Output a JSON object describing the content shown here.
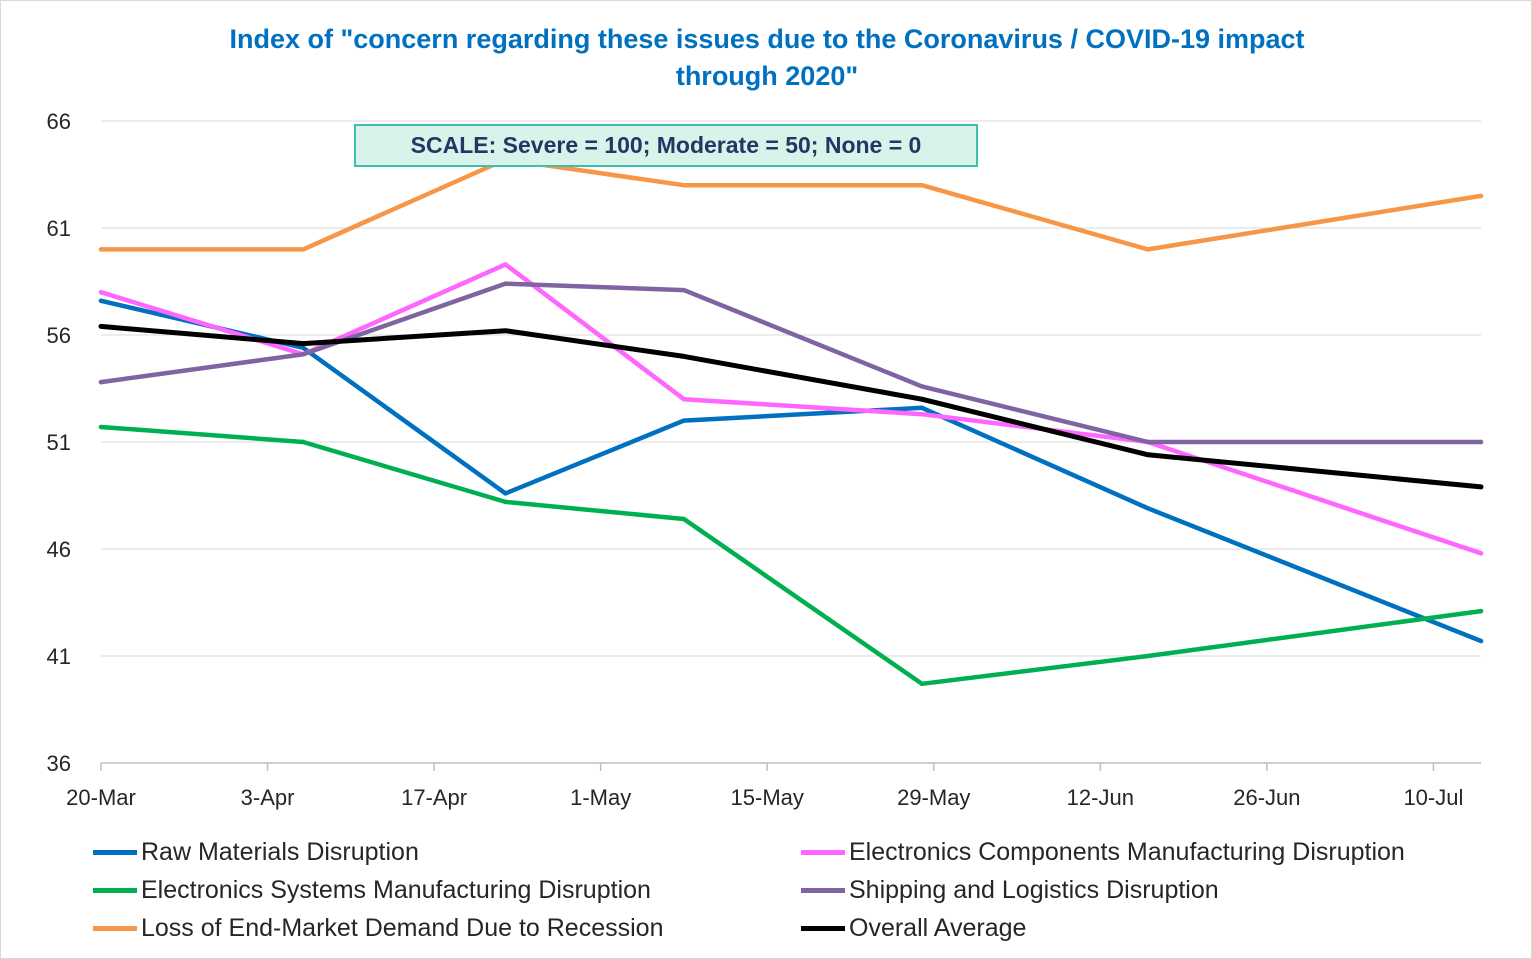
{
  "title_lines": [
    "Index of \"concern regarding these issues due to the Coronavirus / COVID-19 impact",
    "through 2020\""
  ],
  "annotation": "SCALE: Severe = 100; Moderate = 50; None = 0",
  "chart_data": {
    "type": "line",
    "title": "Index of \"concern regarding these issues due to the Coronavirus / COVID-19 impact through 2020\"",
    "xlabel": "",
    "ylabel": "",
    "ylim": [
      36,
      66
    ],
    "yticks": [
      36,
      41,
      46,
      51,
      56,
      61,
      66
    ],
    "xlim": [
      "2020-03-20",
      "2020-07-14"
    ],
    "xticks": [
      "2020-03-20",
      "2020-04-03",
      "2020-04-17",
      "2020-05-01",
      "2020-05-15",
      "2020-05-29",
      "2020-06-12",
      "2020-06-26",
      "2020-07-10"
    ],
    "xtick_labels": [
      "20-Mar",
      "3-Apr",
      "17-Apr",
      "1-May",
      "15-May",
      "29-May",
      "12-Jun",
      "26-Jun",
      "10-Jul"
    ],
    "x": [
      "2020-03-20",
      "2020-04-06",
      "2020-04-23",
      "2020-05-08",
      "2020-05-28",
      "2020-06-16",
      "2020-07-14"
    ],
    "grid": true,
    "legend_position": "bottom",
    "series": [
      {
        "name": "Raw Materials Disruption",
        "color": "#0070c0",
        "values": [
          57.6,
          55.4,
          48.6,
          52.0,
          52.6,
          47.9,
          41.7
        ]
      },
      {
        "name": "Electronics Components Manufacturing Disruption",
        "color": "#ff66ff",
        "values": [
          58.0,
          55.1,
          59.3,
          53.0,
          52.3,
          51.0,
          45.8
        ]
      },
      {
        "name": "Electronics Systems Manufacturing Disruption",
        "color": "#00b050",
        "values": [
          51.7,
          51.0,
          48.2,
          47.4,
          39.7,
          41.0,
          43.1
        ]
      },
      {
        "name": "Shipping and Logistics Disruption",
        "color": "#8064a2",
        "values": [
          53.8,
          55.1,
          58.4,
          58.1,
          53.6,
          51.0,
          51.0
        ]
      },
      {
        "name": "Loss of End-Market Demand Due to Recession",
        "color": "#f79646",
        "values": [
          60.0,
          60.0,
          64.2,
          63.0,
          63.0,
          60.0,
          62.5
        ]
      },
      {
        "name": "Overall Average",
        "color": "#000000",
        "values": [
          56.4,
          55.6,
          56.2,
          55.0,
          53.0,
          50.4,
          48.9
        ]
      }
    ]
  }
}
